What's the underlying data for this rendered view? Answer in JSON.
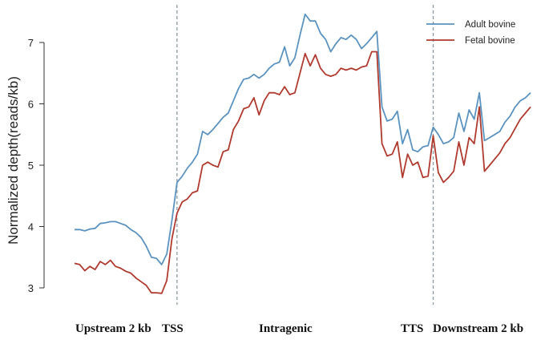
{
  "chart_data": {
    "type": "line",
    "title": "",
    "ylabel": "Normalized depth(reads/kb)",
    "xlabel": "",
    "ylim": [
      2.9,
      7.55
    ],
    "yticks": [
      3,
      4,
      5,
      6,
      7
    ],
    "grid": false,
    "legend": "top-right",
    "x": [
      0,
      1,
      2,
      3,
      4,
      5,
      6,
      7,
      8,
      9,
      10,
      11,
      12,
      13,
      14,
      15,
      16,
      17,
      18,
      19,
      20,
      21,
      22,
      23,
      24,
      25,
      26,
      27,
      28,
      29,
      30,
      31,
      32,
      33,
      34,
      35,
      36,
      37,
      38,
      39,
      40,
      41,
      42,
      43,
      44,
      45,
      46,
      47,
      48,
      49,
      50,
      51,
      52,
      53,
      54,
      55,
      56,
      57,
      58,
      59,
      60,
      61,
      62,
      63,
      64,
      65,
      66,
      67,
      68,
      69,
      70,
      71,
      72,
      73,
      74,
      75,
      76,
      77,
      78,
      79,
      80,
      81,
      82,
      83,
      84,
      85,
      86,
      87,
      88,
      89
    ],
    "x_markers": [
      {
        "x": 20,
        "label": "TSS"
      },
      {
        "x": 70,
        "label": "TTS"
      }
    ],
    "series": [
      {
        "name": "Adult bovine",
        "color": "#5b93c0",
        "values": [
          3.95,
          3.95,
          3.93,
          3.96,
          3.97,
          4.05,
          4.06,
          4.08,
          4.08,
          4.05,
          4.02,
          3.95,
          3.9,
          3.82,
          3.68,
          3.5,
          3.48,
          3.38,
          3.55,
          4.1,
          4.72,
          4.82,
          4.95,
          5.05,
          5.18,
          5.55,
          5.5,
          5.58,
          5.68,
          5.78,
          5.85,
          6.05,
          6.25,
          6.4,
          6.42,
          6.48,
          6.42,
          6.48,
          6.58,
          6.65,
          6.68,
          6.93,
          6.62,
          6.75,
          7.12,
          7.46,
          7.35,
          7.35,
          7.15,
          7.05,
          6.85,
          6.98,
          7.08,
          7.05,
          7.12,
          7.05,
          6.9,
          6.98,
          7.08,
          7.18,
          5.95,
          5.72,
          5.75,
          5.88,
          5.35,
          5.58,
          5.25,
          5.22,
          5.3,
          5.32,
          5.62,
          5.5,
          5.35,
          5.38,
          5.45,
          5.85,
          5.55,
          5.9,
          5.75,
          6.18,
          5.4,
          5.45,
          5.5,
          5.55,
          5.7,
          5.8,
          5.95,
          6.05,
          6.1,
          6.18
        ],
        "values_note": ""
      },
      {
        "name": "Fetal bovine",
        "color": "#b03a2e",
        "values": [
          3.4,
          3.38,
          3.28,
          3.35,
          3.3,
          3.43,
          3.38,
          3.45,
          3.35,
          3.32,
          3.27,
          3.24,
          3.16,
          3.1,
          3.04,
          2.92,
          2.92,
          2.91,
          3.12,
          3.8,
          4.22,
          4.4,
          4.45,
          4.55,
          4.58,
          5.0,
          5.05,
          5.0,
          4.97,
          5.22,
          5.25,
          5.58,
          5.72,
          5.92,
          5.95,
          6.1,
          5.82,
          6.05,
          6.18,
          6.18,
          6.15,
          6.28,
          6.15,
          6.18,
          6.5,
          6.82,
          6.62,
          6.8,
          6.58,
          6.48,
          6.45,
          6.48,
          6.58,
          6.55,
          6.58,
          6.55,
          6.6,
          6.62,
          6.85,
          6.85,
          5.35,
          5.15,
          5.18,
          5.38,
          4.8,
          5.18,
          5.0,
          5.05,
          4.8,
          4.82,
          5.48,
          4.88,
          4.72,
          4.8,
          4.9,
          5.38,
          5.0,
          5.45,
          5.35,
          5.95,
          4.9,
          5.0,
          5.1,
          5.2,
          5.35,
          5.45,
          5.6,
          5.75,
          5.85,
          5.95
        ]
      }
    ],
    "region_labels": {
      "upstream": "Upstream 2 kb",
      "tss": "TSS",
      "intragenic": "Intragenic",
      "tts": "TTS",
      "downstream": "Downstream 2 kb"
    },
    "colors": {
      "tss_label": "#2aa3e0",
      "tts_label": "#e07a2a",
      "marker_line": "#8a9aa0",
      "axis": "#333333"
    }
  }
}
